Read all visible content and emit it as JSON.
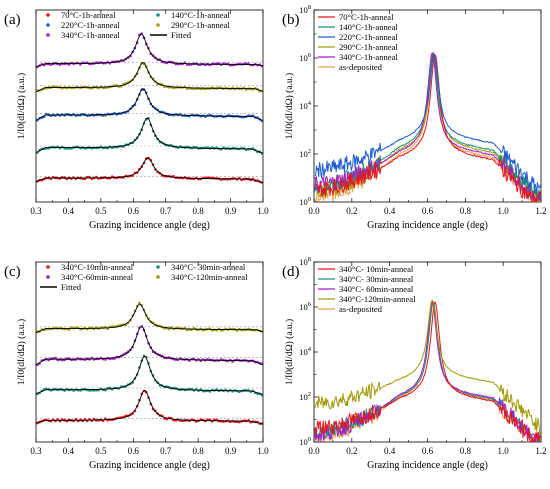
{
  "panels": [
    {
      "id": "a",
      "label": "(a)",
      "type": "line",
      "xlabel": "Grazing incidence angle (deg)",
      "ylabel": "1/I0(dI/dΩ) (a.u.)",
      "xlim": [
        0.3,
        1.0
      ],
      "xticks": [
        "0.3",
        "0.4",
        "0.5",
        "0.6",
        "0.7",
        "0.8",
        "0.9",
        "1.0"
      ],
      "ylim": [
        0,
        6
      ],
      "log": false,
      "grid": false,
      "legend_columns": 2,
      "legend": [
        {
          "name": "70°C-1h-anneal",
          "color": "#e8141b",
          "marker": "dot"
        },
        {
          "name": "140°C-1h-anneal",
          "color": "#1a8f7a",
          "marker": "dot"
        },
        {
          "name": "220°C-1h-anneal",
          "color": "#1f5fd1",
          "marker": "dot"
        },
        {
          "name": "290°C-1h-anneal",
          "color": "#a39a0a",
          "marker": "dot"
        },
        {
          "name": "340°C-1h-anneal",
          "color": "#a020c8",
          "marker": "dot"
        },
        {
          "name": "Fitted",
          "color": "#000000",
          "marker": "line"
        }
      ],
      "offset_profiles": [
        {
          "color": "#e8141b",
          "offset": 0.6,
          "peak_x": 0.645,
          "peak_h": 0.65,
          "baseline_h": 0.15,
          "right_drop": 0.96
        },
        {
          "color": "#1a8f7a",
          "offset": 1.5,
          "peak_x": 0.643,
          "peak_h": 0.95,
          "baseline_h": 0.2,
          "right_drop": 0.965
        },
        {
          "color": "#1f5fd1",
          "offset": 2.5,
          "peak_x": 0.63,
          "peak_h": 0.85,
          "baseline_h": 0.22,
          "right_drop": 0.97
        },
        {
          "color": "#a39a0a",
          "offset": 3.4,
          "peak_x": 0.63,
          "peak_h": 0.8,
          "baseline_h": 0.18,
          "right_drop": 0.975
        },
        {
          "color": "#a020c8",
          "offset": 4.2,
          "peak_x": 0.625,
          "peak_h": 0.95,
          "baseline_h": 0.12,
          "right_drop": 0.98
        }
      ]
    },
    {
      "id": "b",
      "label": "(b)",
      "type": "line",
      "xlabel": "Grazing incidence angle (deg)",
      "ylabel": "1/I0(dI/dΩ) (a.u.)",
      "xlim": [
        0.0,
        1.2
      ],
      "xticks": [
        "0.0",
        "0.2",
        "0.4",
        "0.6",
        "0.8",
        "1.0",
        "1.2"
      ],
      "ylim": [
        1,
        100000000
      ],
      "log": true,
      "yticks": [
        {
          "base": "10",
          "exp": "0",
          "value": 1
        },
        {
          "base": "10",
          "exp": "2",
          "value": 100
        },
        {
          "base": "10",
          "exp": "4",
          "value": 10000
        },
        {
          "base": "10",
          "exp": "6",
          "value": 1000000
        },
        {
          "base": "10",
          "exp": "8",
          "value": 100000000
        }
      ],
      "grid": false,
      "legend_columns": 1,
      "legend": [
        {
          "name": "70°C-1h-anneal",
          "color": "#e8141b",
          "marker": "line"
        },
        {
          "name": "140°C-1h-anneal",
          "color": "#1a8f7a",
          "marker": "line"
        },
        {
          "name": "220°C-1h-anneal",
          "color": "#1f5fd1",
          "marker": "line"
        },
        {
          "name": "290°C-1h-anneal",
          "color": "#a39a0a",
          "marker": "line"
        },
        {
          "name": "340°C-1h-anneal",
          "color": "#a020c8",
          "marker": "line"
        },
        {
          "name": "as-deposited",
          "color": "#f0a048",
          "marker": "line"
        }
      ],
      "log_profiles": [
        {
          "color": "#f0a048",
          "floor_log": 0.2,
          "shoulder_log": 1.9,
          "peak_log": 6.05,
          "peak_x": 0.63
        },
        {
          "color": "#a39a0a",
          "floor_log": 0.4,
          "shoulder_log": 2.1,
          "peak_log": 6.0,
          "peak_x": 0.635
        },
        {
          "color": "#1a8f7a",
          "floor_log": 0.6,
          "shoulder_log": 2.2,
          "peak_log": 6.0,
          "peak_x": 0.63
        },
        {
          "color": "#a020c8",
          "floor_log": 0.7,
          "shoulder_log": 2.0,
          "peak_log": 6.0,
          "peak_x": 0.625
        },
        {
          "color": "#e8141b",
          "floor_log": 0.5,
          "shoulder_log": 1.8,
          "peak_log": 5.95,
          "peak_x": 0.64
        },
        {
          "color": "#1f5fd1",
          "floor_log": 1.3,
          "shoulder_log": 2.5,
          "peak_log": 5.95,
          "peak_x": 0.635
        }
      ]
    },
    {
      "id": "c",
      "label": "(c)",
      "type": "line",
      "xlabel": "Grazing incidence angle (deg)",
      "ylabel": "1/I0(dI/dΩ) (a.u.)",
      "xlim": [
        0.3,
        1.0
      ],
      "xticks": [
        "0.3",
        "0.4",
        "0.5",
        "0.6",
        "0.7",
        "0.8",
        "0.9",
        "1.0"
      ],
      "ylim": [
        0,
        5
      ],
      "log": false,
      "grid": false,
      "legend_columns": 2,
      "legend": [
        {
          "name": "340°C-10min-anneal",
          "color": "#e8141b",
          "marker": "dot"
        },
        {
          "name": "340°C- 30min-anneal",
          "color": "#1a8f7a",
          "marker": "dot"
        },
        {
          "name": "340°C-60min-anneal",
          "color": "#a020c8",
          "marker": "dot"
        },
        {
          "name": "340°C-120min-anneal",
          "color": "#a39a0a",
          "marker": "dot"
        },
        {
          "name": "Fitted",
          "color": "#000000",
          "marker": "line"
        }
      ],
      "offset_profiles": [
        {
          "color": "#e8141b",
          "offset": 0.5,
          "peak_x": 0.635,
          "peak_h": 0.85,
          "baseline_h": 0.1,
          "right_drop": 0.96
        },
        {
          "color": "#1a8f7a",
          "offset": 1.3,
          "peak_x": 0.635,
          "peak_h": 0.95,
          "baseline_h": 0.15,
          "right_drop": 0.965
        },
        {
          "color": "#a020c8",
          "offset": 2.1,
          "peak_x": 0.625,
          "peak_h": 0.95,
          "baseline_h": 0.2,
          "right_drop": 0.97
        },
        {
          "color": "#a39a0a",
          "offset": 3.0,
          "peak_x": 0.62,
          "peak_h": 0.7,
          "baseline_h": 0.15,
          "right_drop": 0.98
        }
      ]
    },
    {
      "id": "d",
      "label": "(d)",
      "type": "line",
      "xlabel": "Grazing incidence angle (deg)",
      "ylabel": "1/I0(dI/dΩ) (a.u.)",
      "xlim": [
        0.0,
        1.2
      ],
      "xticks": [
        "0.0",
        "0.2",
        "0.4",
        "0.6",
        "0.8",
        "1.0",
        "1.2"
      ],
      "ylim": [
        1,
        100000000
      ],
      "log": true,
      "yticks": [
        {
          "base": "10",
          "exp": "0",
          "value": 1
        },
        {
          "base": "10",
          "exp": "2",
          "value": 100
        },
        {
          "base": "10",
          "exp": "4",
          "value": 10000
        },
        {
          "base": "10",
          "exp": "6",
          "value": 1000000
        },
        {
          "base": "10",
          "exp": "8",
          "value": 100000000
        }
      ],
      "grid": false,
      "legend_columns": 1,
      "legend": [
        {
          "name": "340°C- 10min-anneal",
          "color": "#e8141b",
          "marker": "line"
        },
        {
          "name": "340°C- 30min-anneal",
          "color": "#1a8f7a",
          "marker": "line"
        },
        {
          "name": "340°C- 60min-anneal",
          "color": "#a020c8",
          "marker": "line"
        },
        {
          "name": "340°C-120min-anneal",
          "color": "#a39a0a",
          "marker": "line"
        },
        {
          "name": "as-deposited",
          "color": "#f0a048",
          "marker": "line"
        }
      ],
      "log_profiles": [
        {
          "color": "#f0a048",
          "floor_log": 0.2,
          "shoulder_log": 1.9,
          "peak_log": 6.05,
          "peak_x": 0.63
        },
        {
          "color": "#1a8f7a",
          "floor_log": 0.4,
          "shoulder_log": 1.95,
          "peak_log": 6.0,
          "peak_x": 0.63
        },
        {
          "color": "#a020c8",
          "floor_log": 0.3,
          "shoulder_log": 2.0,
          "peak_log": 6.0,
          "peak_x": 0.625
        },
        {
          "color": "#e8141b",
          "floor_log": 0.6,
          "shoulder_log": 1.85,
          "peak_log": 6.0,
          "peak_x": 0.64
        },
        {
          "color": "#a39a0a",
          "floor_log": 1.7,
          "shoulder_log": 2.7,
          "peak_log": 6.1,
          "peak_x": 0.625
        }
      ]
    }
  ]
}
